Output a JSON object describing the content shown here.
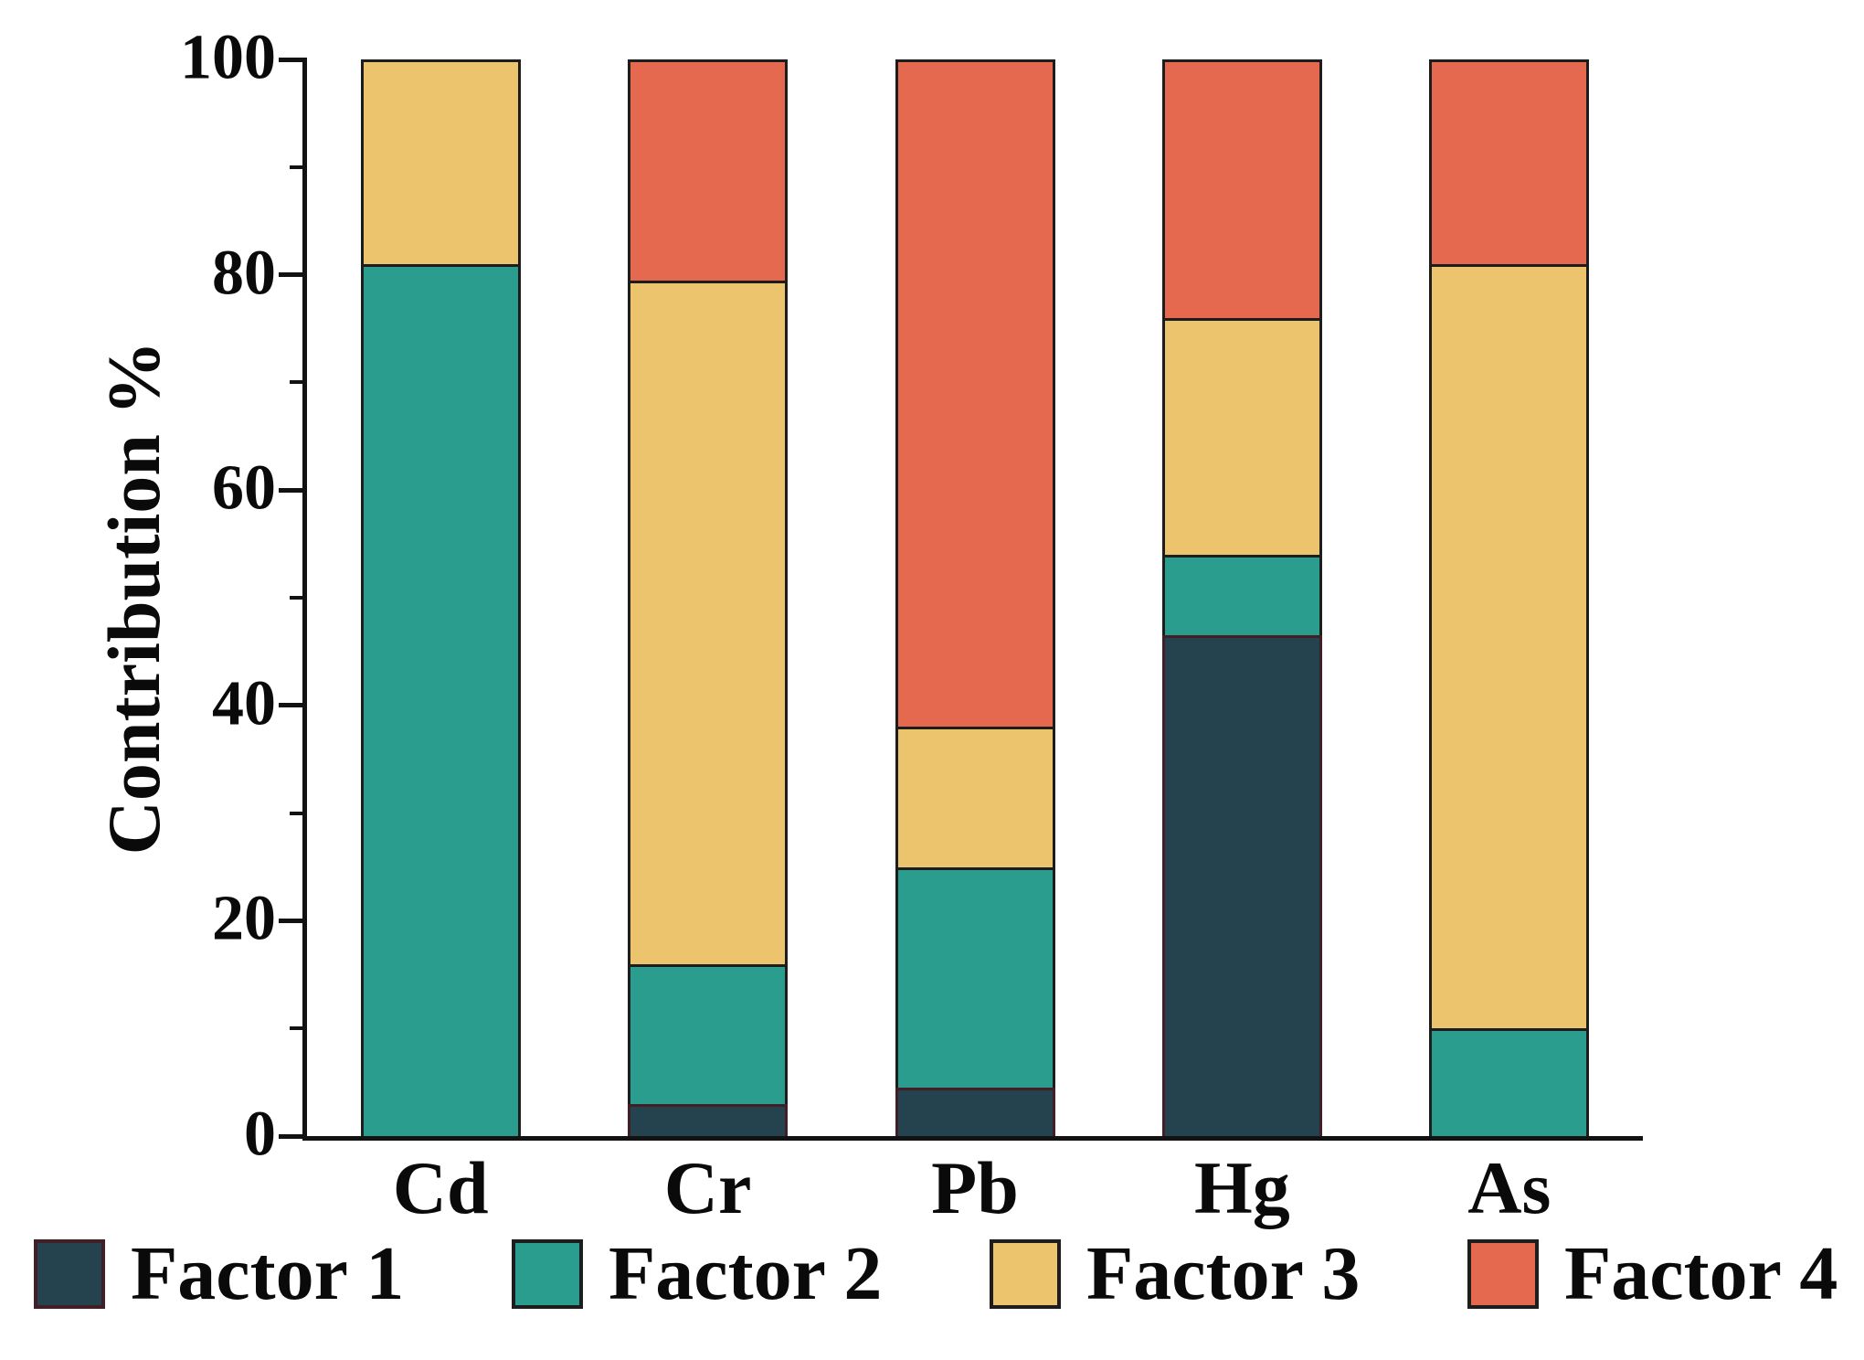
{
  "figure": {
    "background": "#ffffff",
    "axis_color": "#121212",
    "text_color": "#0a0a0a"
  },
  "chart_data": {
    "type": "bar",
    "stacked": true,
    "orientation": "vertical",
    "title": "",
    "xlabel": "",
    "ylabel": "Contribution %",
    "ylim": [
      0,
      100
    ],
    "yticks_major": [
      0,
      20,
      40,
      60,
      80,
      100
    ],
    "yticks_minor": [
      10,
      30,
      50,
      70,
      90
    ],
    "grid": false,
    "legend_position": "bottom",
    "categories": [
      "Cd",
      "Cr",
      "Pb",
      "Hg",
      "As"
    ],
    "series": [
      {
        "name": "Factor 1",
        "color": "#25424f",
        "edge": "#421f26",
        "values": [
          0,
          3,
          4.5,
          46.5,
          0
        ]
      },
      {
        "name": "Factor 2",
        "color": "#2a9d8f",
        "edge": "#1d1d1d",
        "values": [
          81,
          13,
          20.5,
          7.5,
          10
        ]
      },
      {
        "name": "Factor 3",
        "color": "#ecc46d",
        "edge": "#1d1d1d",
        "values": [
          19,
          63.5,
          13,
          22,
          71
        ]
      },
      {
        "name": "Factor 4",
        "color": "#e5694f",
        "edge": "#1d1d1d",
        "values": [
          0,
          20.5,
          62,
          24,
          19
        ]
      }
    ]
  }
}
